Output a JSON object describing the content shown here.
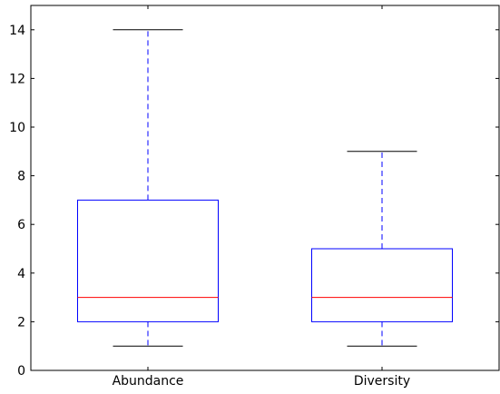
{
  "chart_data": {
    "type": "box",
    "title": "",
    "xlabel": "",
    "ylabel": "",
    "categories": [
      "Abundance",
      "Diversity"
    ],
    "boxes": [
      {
        "name": "Abundance",
        "whisker_low": 1,
        "q1": 2,
        "median": 3,
        "q3": 7,
        "whisker_high": 14
      },
      {
        "name": "Diversity",
        "whisker_low": 1,
        "q1": 2,
        "median": 3,
        "q3": 5,
        "whisker_high": 9
      }
    ],
    "ylim": [
      0,
      15
    ],
    "yticks": [
      0,
      2,
      4,
      6,
      8,
      10,
      12,
      14
    ],
    "grid": false,
    "legend": "none",
    "colors": {
      "box": "#0000ff",
      "whisker": "#0000ff",
      "cap": "#000000",
      "median": "#ff0000",
      "axes": "#000000"
    }
  }
}
